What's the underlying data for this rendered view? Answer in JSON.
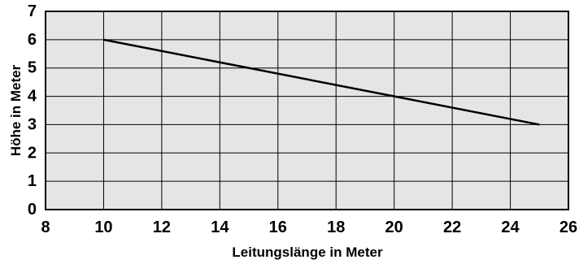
{
  "chart_data": {
    "type": "line",
    "title": "",
    "xlabel": "Leitungslänge in Meter",
    "ylabel": "Höhe in Meter",
    "xlim": [
      8,
      26
    ],
    "ylim": [
      0,
      7
    ],
    "x_ticks": [
      8,
      10,
      12,
      14,
      16,
      18,
      20,
      22,
      24,
      26
    ],
    "y_ticks": [
      0,
      1,
      2,
      3,
      4,
      5,
      6,
      7
    ],
    "grid": true,
    "legend": "none",
    "series": [
      {
        "x": [
          10,
          25
        ],
        "y": [
          6,
          3
        ],
        "color": "#000000"
      }
    ],
    "colors": {
      "plot_background": "#e5e5e5",
      "grid": "#000000",
      "line": "#000000"
    }
  }
}
